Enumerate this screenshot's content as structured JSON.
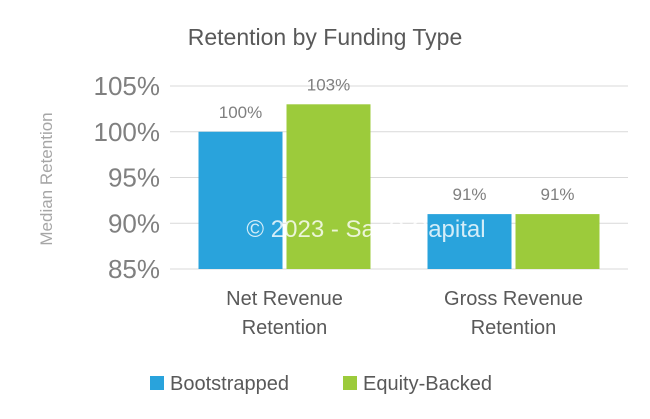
{
  "chart_data": {
    "type": "bar",
    "title": "Retention by Funding Type",
    "ylabel": "Median Retention",
    "xlabel": "",
    "categories": [
      "Net Revenue Retention",
      "Gross Revenue Retention"
    ],
    "category_lines": [
      [
        "Net Revenue",
        "Retention"
      ],
      [
        "Gross Revenue",
        "Retention"
      ]
    ],
    "series": [
      {
        "name": "Bootstrapped",
        "values": [
          100,
          91
        ],
        "color": "#29a3dc",
        "labels": [
          "100%",
          "91%"
        ]
      },
      {
        "name": "Equity-Backed",
        "values": [
          103,
          91
        ],
        "color": "#9ccb3b",
        "labels": [
          "103%",
          "91%"
        ]
      }
    ],
    "ylim": [
      85,
      105
    ],
    "yticks": [
      {
        "value": 85,
        "label": "85%"
      },
      {
        "value": 90,
        "label": "90%"
      },
      {
        "value": 95,
        "label": "95%"
      },
      {
        "value": 100,
        "label": "100%"
      },
      {
        "value": 105,
        "label": "105%"
      }
    ],
    "grid": true,
    "legend_position": "bottom"
  },
  "watermark": "© 2023 - SaaS Capital"
}
